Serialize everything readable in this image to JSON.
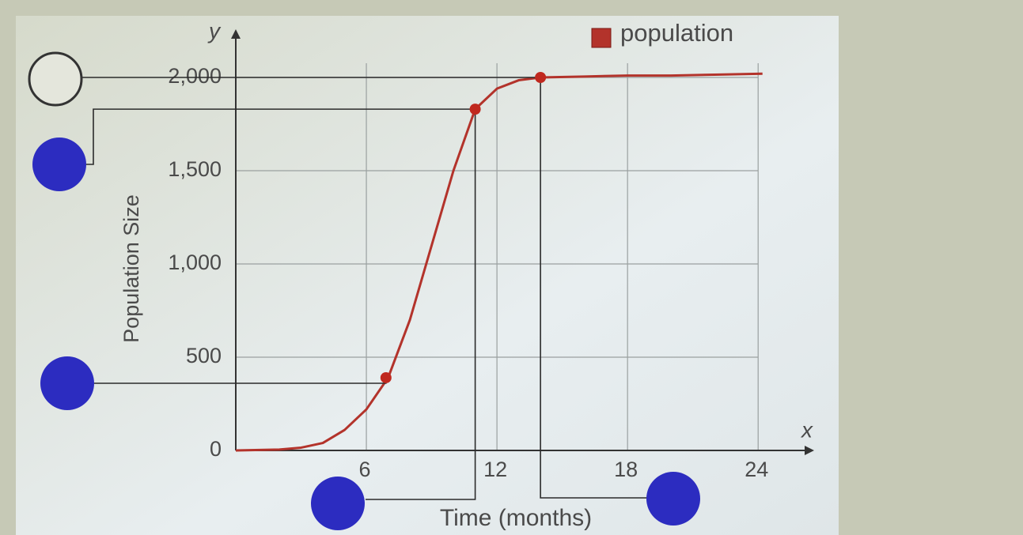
{
  "chart_data": {
    "type": "line",
    "y_axis_letter": "y",
    "x_axis_letter": "x",
    "x_label": "Time (months)",
    "y_label": "Population Size",
    "xlim": [
      0,
      26.5
    ],
    "ylim": [
      0,
      2250
    ],
    "xticks": [
      6,
      12,
      18,
      24
    ],
    "yticks": [
      0,
      500,
      {
        "value": 1000,
        "label": "1,000"
      },
      {
        "value": 1500,
        "label": "1,500"
      },
      {
        "value": 2000,
        "label": "2,000"
      }
    ],
    "grid": true,
    "series": [
      {
        "name": "population",
        "color": "#b3332b",
        "x": [
          0,
          2,
          3,
          4,
          5,
          6,
          7,
          8,
          9,
          10,
          11,
          12,
          13,
          14,
          16,
          18,
          20,
          22,
          24.2
        ],
        "values": [
          0,
          5,
          15,
          40,
          110,
          220,
          390,
          700,
          1100,
          1500,
          1830,
          1940,
          1985,
          2000,
          2005,
          2010,
          2010,
          2015,
          2020
        ],
        "highlighted": {
          "x": [
            6.9,
            11,
            14
          ],
          "values": [
            390,
            1830,
            2000
          ]
        }
      }
    ]
  }
}
